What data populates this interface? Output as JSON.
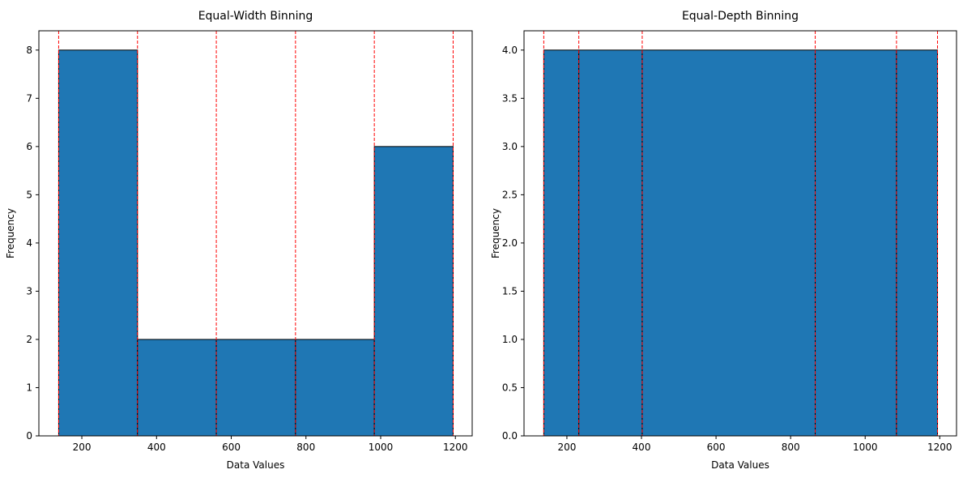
{
  "chart_data": [
    {
      "type": "bar",
      "title": "Equal-Width Binning",
      "xlabel": "Data Values",
      "ylabel": "Frequency",
      "xlim": [
        85,
        1245
      ],
      "ylim": [
        0,
        8.4
      ],
      "xticks": [
        200,
        400,
        600,
        800,
        1000,
        1200
      ],
      "yticks": [
        0,
        1,
        2,
        3,
        4,
        5,
        6,
        7,
        8
      ],
      "bin_edges": [
        138,
        349,
        560,
        772,
        983,
        1194
      ],
      "values": [
        8,
        2,
        2,
        2,
        6
      ],
      "bar_color": "#1f77b4",
      "edge_color": "#000000",
      "divider_color": "#ff0000",
      "grid": false
    },
    {
      "type": "bar",
      "title": "Equal-Depth Binning",
      "xlabel": "Data Values",
      "ylabel": "Frequency",
      "xlim": [
        85,
        1245
      ],
      "ylim": [
        0,
        4.2
      ],
      "xticks": [
        200,
        400,
        600,
        800,
        1000,
        1200
      ],
      "yticks": [
        0.0,
        0.5,
        1.0,
        1.5,
        2.0,
        2.5,
        3.0,
        3.5,
        4.0
      ],
      "ytick_decimals": 1,
      "bin_edges": [
        138,
        232,
        402,
        866,
        1084,
        1194
      ],
      "values": [
        4,
        4,
        4,
        4,
        4
      ],
      "bar_color": "#1f77b4",
      "edge_color": "#000000",
      "divider_color": "#ff0000",
      "grid": false
    }
  ]
}
